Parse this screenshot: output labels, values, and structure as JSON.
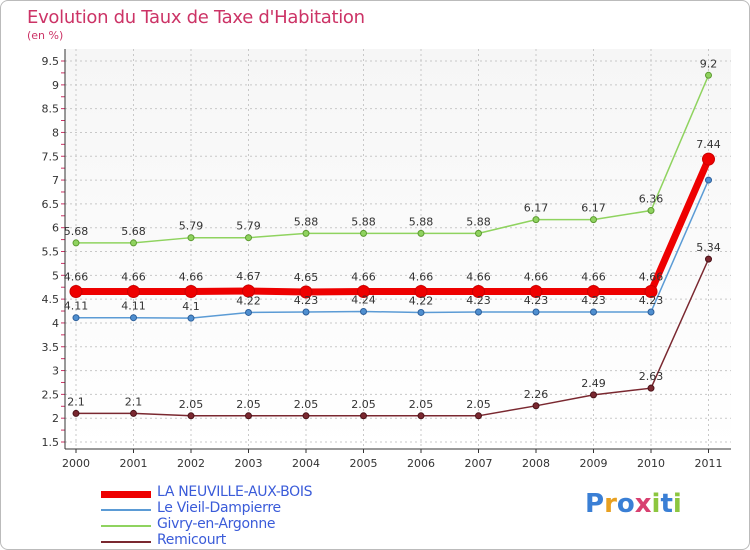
{
  "header": {
    "title": "Evolution du Taux de Taxe d'Habitation",
    "subtitle": "(en %)"
  },
  "brand": {
    "letters": [
      "P",
      "r",
      "o",
      "x",
      "i",
      "t",
      "i"
    ],
    "colors": [
      "#3a7fd5",
      "#e8a020",
      "#3a7fd5",
      "#d84070",
      "#8cc63f",
      "#3a7fd5",
      "#8cc63f"
    ]
  },
  "chart_data": {
    "type": "line",
    "title": "Evolution du Taux de Taxe d'Habitation",
    "subtitle": "(en %)",
    "xlabel": "",
    "ylabel": "",
    "x": [
      "2000",
      "2001",
      "2002",
      "2003",
      "2004",
      "2005",
      "2006",
      "2007",
      "2008",
      "2009",
      "2010",
      "2011"
    ],
    "yticks": [
      "1.5",
      "2",
      "2.5",
      "3",
      "3.5",
      "4",
      "4.5",
      "5",
      "5.5",
      "6",
      "6.5",
      "7",
      "7.5",
      "8",
      "8.5",
      "9",
      "9.5"
    ],
    "ylim": [
      1.5,
      9.5
    ],
    "grid": true,
    "legend": "bottom-left",
    "series": [
      {
        "name": "LA NEUVILLE-AUX-BOIS",
        "color": "#ee0000",
        "values": [
          4.66,
          4.66,
          4.66,
          4.67,
          4.65,
          4.66,
          4.66,
          4.66,
          4.66,
          4.66,
          4.66,
          7.44
        ],
        "labels": [
          "4.66",
          "4.66",
          "4.66",
          "4.67",
          "4.65",
          "4.66",
          "4.66",
          "4.66",
          "4.66",
          "4.66",
          "4.66",
          "7.44"
        ]
      },
      {
        "name": "Le Vieil-Dampierre",
        "color": "#5b9bd5",
        "values": [
          4.11,
          4.11,
          4.1,
          4.22,
          4.23,
          4.24,
          4.22,
          4.23,
          4.23,
          4.23,
          4.23,
          7.0
        ],
        "labels": [
          "4.11",
          "4.11",
          "4.1",
          "4.22",
          "4.23",
          "4.24",
          "4.22",
          "4.23",
          "4.23",
          "4.23",
          "4.23",
          ""
        ]
      },
      {
        "name": "Givry-en-Argonne",
        "color": "#8fd35f",
        "values": [
          5.68,
          5.68,
          5.79,
          5.79,
          5.88,
          5.88,
          5.88,
          5.88,
          6.17,
          6.17,
          6.36,
          9.2
        ],
        "labels": [
          "5.68",
          "5.68",
          "5.79",
          "5.79",
          "5.88",
          "5.88",
          "5.88",
          "5.88",
          "6.17",
          "6.17",
          "6.36",
          "9.2"
        ]
      },
      {
        "name": "Remicourt",
        "color": "#7a2830",
        "values": [
          2.1,
          2.1,
          2.05,
          2.05,
          2.05,
          2.05,
          2.05,
          2.05,
          2.26,
          2.49,
          2.63,
          5.34
        ],
        "labels": [
          "2.1",
          "2.1",
          "2.05",
          "2.05",
          "2.05",
          "2.05",
          "2.05",
          "2.05",
          "2.26",
          "2.49",
          "2.63",
          "5.34"
        ]
      }
    ]
  }
}
